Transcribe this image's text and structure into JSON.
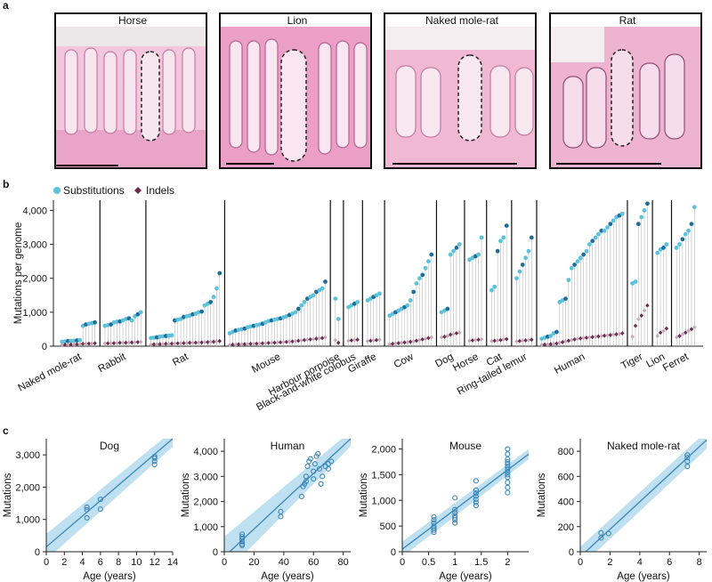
{
  "panel_a": {
    "label": "a",
    "images": [
      {
        "title": "Horse"
      },
      {
        "title": "Lion"
      },
      {
        "title": "Naked mole-rat"
      },
      {
        "title": "Rat"
      }
    ]
  },
  "panel_b": {
    "label": "b"
  },
  "panel_c": {
    "label": "c"
  },
  "colors": {
    "substitution_light": "#5cc2dc",
    "substitution_dark": "#1f6e9a",
    "indel": "#6b2a4a",
    "indel_light": "#c4a8b8",
    "fit_line": "#3a86b8",
    "ci_band": "#bfe0f0"
  },
  "chart_data": [
    {
      "type": "scatter",
      "ylabel": "Mutations per genome",
      "ylim": [
        0,
        4300
      ],
      "yticks": [
        "0",
        "1,000",
        "2,000",
        "3,000",
        "4,000"
      ],
      "legend": {
        "position": "top-left",
        "entries": [
          "Substitutions",
          "Indels"
        ]
      },
      "species": [
        {
          "name": "Naked mole-rat",
          "substitutions": [
            130,
            140,
            150,
            155,
            160,
            170,
            180,
            600,
            640,
            660,
            680,
            700
          ],
          "indels": [
            40,
            45,
            50,
            50,
            55,
            55,
            60,
            70,
            75,
            75,
            80,
            85
          ]
        },
        {
          "name": "Rabbit",
          "substitutions": [
            600,
            620,
            640,
            700,
            720,
            730,
            760,
            800,
            820,
            760,
            880,
            940,
            1000
          ],
          "indels": [
            80,
            85,
            90,
            90,
            95,
            100,
            100,
            105,
            110,
            110,
            115,
            120,
            125
          ]
        },
        {
          "name": "Rat",
          "substitutions": [
            240,
            250,
            260,
            280,
            290,
            300,
            310,
            320,
            760,
            780,
            800,
            860,
            880,
            900,
            940,
            960,
            1000,
            1020,
            1200,
            1250,
            1300,
            1450,
            1700,
            2150
          ],
          "indels": [
            50,
            55,
            60,
            60,
            65,
            70,
            70,
            75,
            80,
            85,
            85,
            90,
            95,
            100,
            100,
            105,
            110,
            110,
            115,
            120,
            125,
            130,
            140,
            150
          ]
        },
        {
          "name": "Mouse",
          "substitutions": [
            380,
            420,
            460,
            480,
            500,
            520,
            560,
            580,
            600,
            620,
            640,
            660,
            700,
            740,
            760,
            780,
            800,
            820,
            850,
            880,
            920,
            960,
            1000,
            1100,
            1200,
            1300,
            1400,
            1450,
            1500,
            1600,
            1650,
            1700,
            1900
          ],
          "indels": [
            40,
            45,
            50,
            55,
            60,
            60,
            65,
            70,
            70,
            75,
            80,
            85,
            90,
            95,
            100,
            105,
            110,
            115,
            120,
            125,
            130,
            140,
            150,
            160,
            170,
            180,
            190,
            200,
            210,
            220,
            230,
            240,
            260
          ]
        },
        {
          "name": "Harbour porpoise",
          "substitutions": [
            1400,
            800
          ],
          "indels": [
            180,
            100
          ]
        },
        {
          "name": "Black-and-white colobus",
          "substitutions": [
            1150,
            1200,
            1250,
            1300
          ],
          "indels": [
            160,
            170,
            180,
            190
          ]
        },
        {
          "name": "Giraffe",
          "substitutions": [
            1350,
            1400,
            1450,
            1500,
            1550
          ],
          "indels": [
            150,
            160,
            170,
            180,
            190
          ]
        },
        {
          "name": "Cow",
          "substitutions": [
            900,
            950,
            1000,
            1050,
            1100,
            1150,
            1200,
            1350,
            1600,
            1850,
            2000,
            2100,
            2300,
            2500,
            2700
          ],
          "indels": [
            60,
            70,
            80,
            90,
            100,
            110,
            120,
            130,
            140,
            160,
            180,
            200,
            220,
            240,
            260
          ]
        },
        {
          "name": "Dog",
          "substitutions": [
            1000,
            1050,
            1100,
            2700,
            2800,
            2900,
            3000
          ],
          "indels": [
            260,
            280,
            300,
            340,
            360,
            380,
            400
          ]
        },
        {
          "name": "Horse",
          "substitutions": [
            2550,
            2600,
            2650,
            2700,
            3200
          ],
          "indels": [
            160,
            170,
            180,
            190,
            200
          ]
        },
        {
          "name": "Cat",
          "substitutions": [
            1650,
            1750,
            2800,
            3100,
            3200,
            3550
          ],
          "indels": [
            150,
            160,
            170,
            180,
            200,
            210
          ]
        },
        {
          "name": "Ring-tailed lemur",
          "substitutions": [
            2000,
            2200,
            2400,
            2600,
            2800,
            3200
          ],
          "indels": [
            140,
            150,
            160,
            170,
            180,
            190
          ]
        },
        {
          "name": "Human",
          "substitutions": [
            220,
            250,
            280,
            300,
            380,
            420,
            1300,
            1350,
            1400,
            1950,
            2300,
            2400,
            2500,
            2600,
            2700,
            2800,
            3000,
            3100,
            3200,
            3300,
            3400,
            3400,
            3500,
            3600,
            3700,
            3800,
            3850,
            3900
          ],
          "indels": [
            40,
            45,
            50,
            60,
            70,
            80,
            100,
            120,
            140,
            160,
            180,
            200,
            220,
            230,
            240,
            250,
            260,
            270,
            280,
            290,
            300,
            310,
            320,
            330,
            340,
            350,
            360,
            380
          ]
        },
        {
          "name": "Tiger",
          "substitutions": [
            1850,
            1900,
            3600,
            3800,
            4000,
            4200
          ],
          "indels": [
            280,
            600,
            800,
            900,
            1050,
            1200
          ]
        },
        {
          "name": "Lion",
          "substitutions": [
            2750,
            2850,
            2900,
            3000
          ],
          "indels": [
            300,
            400,
            450,
            520
          ]
        },
        {
          "name": "Ferret",
          "substitutions": [
            2900,
            3000,
            3150,
            3300,
            3400,
            3600,
            4100
          ],
          "indels": [
            260,
            300,
            350,
            400,
            450,
            500,
            560
          ]
        }
      ]
    },
    {
      "type": "scatter",
      "title": "Dog",
      "xlabel": "Age (years)",
      "ylabel": "Mutations",
      "xlim": [
        0,
        14
      ],
      "ylim": [
        0,
        3500
      ],
      "xticks": [
        0,
        2,
        4,
        6,
        8,
        10,
        12,
        14
      ],
      "yticks": [
        0,
        1000,
        2000,
        3000
      ],
      "ytick_labels": [
        "0",
        "1,000",
        "2,000",
        "3,000"
      ],
      "x": [
        4.5,
        4.5,
        4.5,
        6,
        6,
        12,
        12,
        12,
        12
      ],
      "y": [
        1050,
        1300,
        1380,
        1320,
        1620,
        2700,
        2800,
        2900,
        2950
      ],
      "fit": {
        "x": [
          0,
          14
        ],
        "y": [
          150,
          3500
        ]
      },
      "ci_upper": [
        550,
        3750
      ],
      "ci_lower": [
        -250,
        3250
      ]
    },
    {
      "type": "scatter",
      "title": "Human",
      "xlabel": "Age (years)",
      "ylabel": "Mutations",
      "xlim": [
        0,
        85
      ],
      "ylim": [
        0,
        4500
      ],
      "xticks": [
        0,
        20,
        40,
        60,
        80
      ],
      "yticks": [
        0,
        1000,
        2000,
        3000,
        4000
      ],
      "ytick_labels": [
        "0",
        "1,000",
        "2,000",
        "3,000",
        "4,000"
      ],
      "x": [
        12,
        12,
        12,
        12,
        12,
        12,
        38,
        38,
        52,
        53,
        54,
        55,
        55,
        56,
        57,
        58,
        60,
        60,
        61,
        62,
        63,
        64,
        65,
        66,
        68,
        70,
        70,
        72
      ],
      "y": [
        250,
        300,
        400,
        500,
        600,
        700,
        1400,
        1600,
        2200,
        2600,
        2700,
        2800,
        3000,
        3400,
        3600,
        3700,
        2900,
        3200,
        3500,
        3800,
        3900,
        3300,
        2700,
        3000,
        3400,
        3300,
        3500,
        3600
      ],
      "fit": {
        "x": [
          0,
          85
        ],
        "y": [
          -200,
          4500
        ]
      },
      "ci_upper": [
        600,
        4800
      ],
      "ci_lower": [
        -900,
        4200
      ]
    },
    {
      "type": "scatter",
      "title": "Mouse",
      "xlabel": "Age (years)",
      "ylabel": "Mutations",
      "xlim": [
        0,
        2.4
      ],
      "ylim": [
        0,
        2200
      ],
      "xticks": [
        0,
        0.5,
        1.0,
        1.5,
        2.0
      ],
      "yticks": [
        0,
        500,
        1000,
        1500,
        2000
      ],
      "ytick_labels": [
        "0",
        "500",
        "1,000",
        "1,500",
        "2,000"
      ],
      "x": [
        0.6,
        0.6,
        0.6,
        0.6,
        0.6,
        0.6,
        0.6,
        1.0,
        1.0,
        1.0,
        1.0,
        1.0,
        1.0,
        1.0,
        1.4,
        1.4,
        1.4,
        1.4,
        1.4,
        1.4,
        1.4,
        2.0,
        2.0,
        2.0,
        2.0,
        2.0,
        2.0,
        2.0,
        2.0,
        2.0,
        2.0,
        2.0,
        2.0,
        2.0
      ],
      "y": [
        380,
        420,
        460,
        500,
        560,
        620,
        680,
        560,
        620,
        660,
        700,
        760,
        820,
        1050,
        900,
        960,
        1020,
        1080,
        1140,
        1200,
        1380,
        1150,
        1250,
        1350,
        1450,
        1500,
        1550,
        1600,
        1650,
        1700,
        1750,
        1800,
        1900,
        2000
      ],
      "fit": {
        "x": [
          0,
          2.4
        ],
        "y": [
          50,
          1900
        ]
      },
      "ci_upper": [
        200,
        2000
      ],
      "ci_lower": [
        -100,
        1800
      ]
    },
    {
      "type": "scatter",
      "title": "Naked mole-rat",
      "xlabel": "Age (years)",
      "ylabel": "Mutations",
      "xlim": [
        0,
        8.5
      ],
      "ylim": [
        0,
        900
      ],
      "xticks": [
        0,
        2,
        4,
        6,
        8
      ],
      "yticks": [
        0,
        200,
        400,
        600,
        800
      ],
      "ytick_labels": [
        "0",
        "200",
        "400",
        "600",
        "800"
      ],
      "x": [
        1.4,
        1.4,
        1.9,
        7.2,
        7.2,
        7.2,
        7.2
      ],
      "y": [
        110,
        150,
        145,
        680,
        720,
        750,
        770
      ],
      "fit": {
        "x": [
          0,
          8.5
        ],
        "y": [
          -40,
          890
        ]
      },
      "ci_upper": [
        40,
        960
      ],
      "ci_lower": [
        -120,
        820
      ]
    }
  ]
}
